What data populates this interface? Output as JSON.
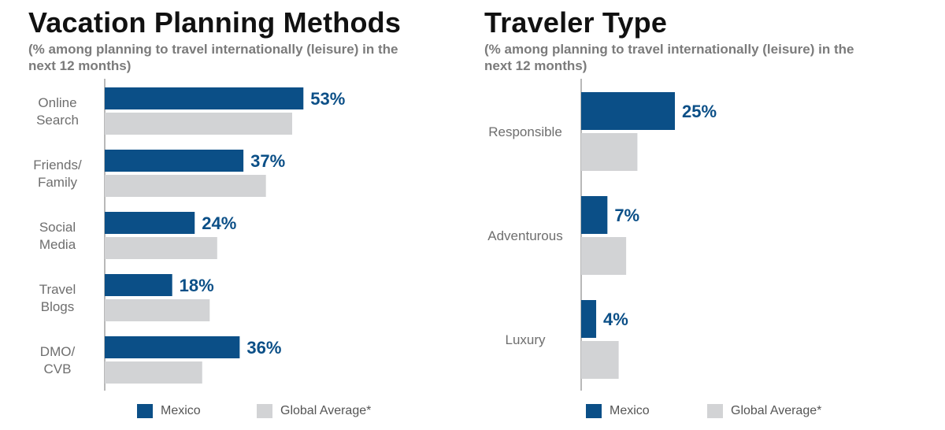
{
  "colors": {
    "mexico": "#0b4f87",
    "global": "#d2d3d5",
    "axis": "#8a8a8a",
    "label": "#6e6e6e"
  },
  "legend": {
    "mexico_label": "Mexico",
    "global_label": "Global Average*"
  },
  "chart_data": [
    {
      "type": "bar",
      "orientation": "horizontal",
      "title": "Vacation Planning Methods",
      "subtitle": "(% among planning to travel internationally (leisure) in the next 12 months)",
      "categories": [
        "Online Search",
        "Friends/ Family",
        "Social Media",
        "Travel Blogs",
        "DMO/ CVB"
      ],
      "category_lines": [
        [
          "Online",
          "Search"
        ],
        [
          "Friends/",
          "Family"
        ],
        [
          "Social",
          "Media"
        ],
        [
          "Travel",
          "Blogs"
        ],
        [
          "DMO/",
          "CVB"
        ]
      ],
      "series": [
        {
          "name": "Mexico",
          "values": [
            53,
            37,
            24,
            18,
            36
          ],
          "labels": [
            "53%",
            "37%",
            "24%",
            "18%",
            "36%"
          ]
        },
        {
          "name": "Global Average*",
          "values": [
            50,
            43,
            30,
            28,
            26
          ]
        }
      ],
      "xlim": [
        0,
        100
      ],
      "grid": false,
      "legend_position": "bottom"
    },
    {
      "type": "bar",
      "orientation": "horizontal",
      "title": "Traveler Type",
      "subtitle": "(% among planning to travel internationally (leisure) in the next 12 months)",
      "categories": [
        "Responsible",
        "Adventurous",
        "Luxury"
      ],
      "category_lines": [
        [
          "Responsible"
        ],
        [
          "Adventurous"
        ],
        [
          "Luxury"
        ]
      ],
      "series": [
        {
          "name": "Mexico",
          "values": [
            25,
            7,
            4
          ],
          "labels": [
            "25%",
            "7%",
            "4%"
          ]
        },
        {
          "name": "Global Average*",
          "values": [
            15,
            12,
            10
          ]
        }
      ],
      "xlim": [
        0,
        100
      ],
      "grid": false,
      "legend_position": "bottom"
    }
  ]
}
